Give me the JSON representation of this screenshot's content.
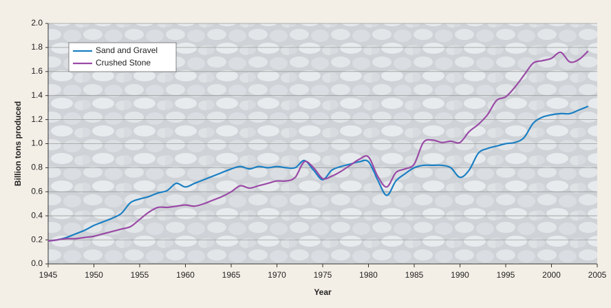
{
  "chart_data": {
    "type": "line",
    "x_label": "Year",
    "y_label": "Billion tons produced",
    "x": [
      1945,
      1946,
      1947,
      1948,
      1949,
      1950,
      1951,
      1952,
      1953,
      1954,
      1955,
      1956,
      1957,
      1958,
      1959,
      1960,
      1961,
      1962,
      1963,
      1964,
      1965,
      1966,
      1967,
      1968,
      1969,
      1970,
      1971,
      1972,
      1973,
      1974,
      1975,
      1976,
      1977,
      1978,
      1979,
      1980,
      1981,
      1982,
      1983,
      1984,
      1985,
      1986,
      1987,
      1988,
      1989,
      1990,
      1991,
      1992,
      1993,
      1994,
      1995,
      1996,
      1997,
      1998,
      1999,
      2000,
      2001,
      2002,
      2003,
      2004
    ],
    "series": [
      {
        "name": "Sand and Gravel",
        "color": "#1a7fc4",
        "values": [
          0.19,
          0.2,
          0.22,
          0.25,
          0.28,
          0.32,
          0.35,
          0.38,
          0.42,
          0.51,
          0.54,
          0.56,
          0.59,
          0.61,
          0.67,
          0.64,
          0.67,
          0.7,
          0.73,
          0.76,
          0.79,
          0.81,
          0.79,
          0.81,
          0.8,
          0.81,
          0.8,
          0.8,
          0.86,
          0.78,
          0.7,
          0.78,
          0.81,
          0.83,
          0.85,
          0.85,
          0.7,
          0.57,
          0.69,
          0.75,
          0.8,
          0.82,
          0.82,
          0.82,
          0.8,
          0.72,
          0.78,
          0.92,
          0.96,
          0.98,
          1.0,
          1.01,
          1.05,
          1.17,
          1.22,
          1.24,
          1.25,
          1.25,
          1.28,
          1.31
        ]
      },
      {
        "name": "Crushed Stone",
        "color": "#9a4aa6",
        "values": [
          0.19,
          0.2,
          0.21,
          0.21,
          0.22,
          0.23,
          0.25,
          0.27,
          0.29,
          0.31,
          0.37,
          0.43,
          0.47,
          0.47,
          0.48,
          0.49,
          0.48,
          0.5,
          0.53,
          0.56,
          0.6,
          0.65,
          0.63,
          0.65,
          0.67,
          0.69,
          0.69,
          0.72,
          0.85,
          0.8,
          0.71,
          0.73,
          0.77,
          0.82,
          0.87,
          0.89,
          0.73,
          0.64,
          0.76,
          0.79,
          0.83,
          1.01,
          1.03,
          1.01,
          1.02,
          1.01,
          1.1,
          1.16,
          1.24,
          1.36,
          1.39,
          1.47,
          1.57,
          1.67,
          1.69,
          1.71,
          1.76,
          1.68,
          1.7,
          1.77
        ]
      }
    ],
    "xlim": [
      1945,
      2005
    ],
    "xticks": [
      1945,
      1950,
      1955,
      1960,
      1965,
      1970,
      1975,
      1980,
      1985,
      1990,
      1995,
      2000,
      2005
    ],
    "ylim": [
      0,
      2
    ],
    "yticks": [
      {
        "value": 0,
        "label": "0.0"
      },
      0.2,
      0.4,
      0.6,
      0.8,
      {
        "value": 1,
        "label": "1.0"
      },
      1.2,
      1.4,
      1.6,
      1.8,
      {
        "value": 2,
        "label": "2.0"
      }
    ],
    "grid": true,
    "legend": "top-left"
  }
}
